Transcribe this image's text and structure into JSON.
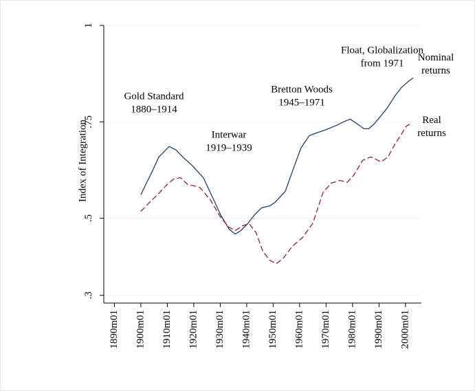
{
  "chart_data": {
    "type": "line",
    "ylabel": "Index of Integration",
    "xlim": [
      1886,
      2006
    ],
    "ylim": [
      0.28,
      1.0
    ],
    "yticks": [
      1,
      {
        "value": 0.75,
        "label": ".75"
      },
      {
        "value": 0.5,
        "label": ".5"
      },
      {
        "value": 0.3,
        "label": ".3"
      }
    ],
    "xticks": [
      {
        "value": 1890,
        "label": "1890m01"
      },
      {
        "value": 1900,
        "label": "1900m01"
      },
      {
        "value": 1910,
        "label": "1910m01"
      },
      {
        "value": 1920,
        "label": "1920m01"
      },
      {
        "value": 1930,
        "label": "1930m01"
      },
      {
        "value": 1940,
        "label": "1940m01"
      },
      {
        "value": 1950,
        "label": "1950m01"
      },
      {
        "value": 1960,
        "label": "1960m01"
      },
      {
        "value": 1970,
        "label": "1970m01"
      },
      {
        "value": 1980,
        "label": "1980m01"
      },
      {
        "value": 1990,
        "label": "1990m01"
      },
      {
        "value": 2000,
        "label": "2000m01"
      }
    ],
    "grid": true,
    "series": [
      {
        "name": "Nominal returns",
        "color": "#1f3f6e",
        "dash": false,
        "x": [
          1900,
          1901.6,
          1904.2,
          1906.8,
          1910.7,
          1913.3,
          1915.8,
          1919.2,
          1923.6,
          1927.5,
          1930.1,
          1933.4,
          1935.7,
          1937.8,
          1940.4,
          1943,
          1945.6,
          1948.7,
          1950.7,
          1954.6,
          1957.2,
          1960.5,
          1963.6,
          1966.2,
          1970.1,
          1974,
          1976.6,
          1979.1,
          1981.7,
          1984.3,
          1986.1,
          1988.2,
          1990.8,
          1993.4,
          1995.9,
          1998.5,
          2001.1,
          2002.9
        ],
        "values": [
          0.561,
          0.584,
          0.62,
          0.659,
          0.686,
          0.677,
          0.659,
          0.638,
          0.605,
          0.548,
          0.509,
          0.471,
          0.459,
          0.468,
          0.486,
          0.509,
          0.527,
          0.532,
          0.541,
          0.57,
          0.62,
          0.682,
          0.714,
          0.721,
          0.73,
          0.741,
          0.75,
          0.757,
          0.745,
          0.732,
          0.732,
          0.745,
          0.766,
          0.789,
          0.816,
          0.839,
          0.855,
          0.864
        ]
      },
      {
        "name": "Real returns",
        "color": "#9b1b30",
        "dash": true,
        "x": [
          1900,
          1903,
          1907,
          1910,
          1912.5,
          1915,
          1917.6,
          1922.3,
          1926.2,
          1930,
          1933.2,
          1935.7,
          1938.3,
          1940.9,
          1943.5,
          1946.1,
          1948.7,
          1951.2,
          1953.8,
          1957.2,
          1961.1,
          1964.9,
          1968.8,
          1971.9,
          1975.3,
          1977.9,
          1980.4,
          1983.8,
          1986.9,
          1990.8,
          1993.4,
          1995.9,
          1998.5,
          2000.3,
          2001.9
        ],
        "values": [
          0.518,
          0.539,
          0.566,
          0.588,
          0.602,
          0.605,
          0.588,
          0.58,
          0.548,
          0.504,
          0.477,
          0.468,
          0.48,
          0.486,
          0.463,
          0.414,
          0.391,
          0.382,
          0.396,
          0.427,
          0.45,
          0.486,
          0.566,
          0.591,
          0.598,
          0.593,
          0.611,
          0.65,
          0.659,
          0.646,
          0.659,
          0.691,
          0.718,
          0.739,
          0.745
        ]
      }
    ],
    "annotations": [
      {
        "lines": [
          "Gold Standard",
          "1880–1914"
        ]
      },
      {
        "lines": [
          "Interwar",
          "1919–1939"
        ]
      },
      {
        "lines": [
          "Bretton Woods",
          "1945–1971"
        ]
      },
      {
        "lines": [
          "Float, Globalization",
          "from 1971"
        ]
      }
    ]
  }
}
